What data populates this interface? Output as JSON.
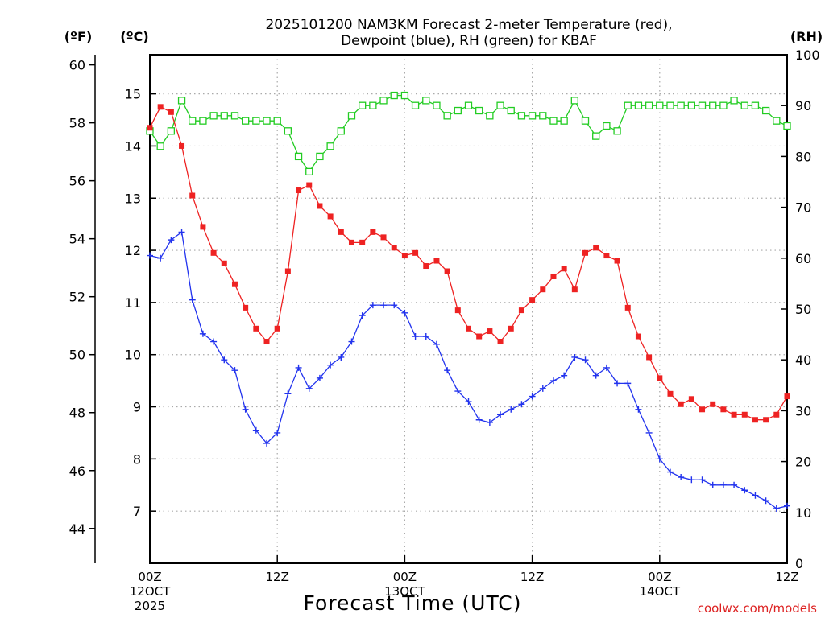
{
  "chart_data": {
    "type": "line",
    "title": "2025101200 NAM3KM Forecast 2-meter Temperature (red),",
    "subtitle": "Dewpoint (blue), RH (green) for KBAF",
    "xlabel": "Forecast Time (UTC)",
    "credit": "coolwx.com/models",
    "colors": {
      "temperature": "#ee2222",
      "dewpoint": "#2233ee",
      "rh": "#22cc22",
      "grid": "#aaaaaa"
    },
    "x_unit": "forecast hour",
    "xlim": [
      0,
      60
    ],
    "x_ticks": [
      {
        "x": 0,
        "label": "00Z",
        "date": "12OCT",
        "year": "2025"
      },
      {
        "x": 12,
        "label": "12Z",
        "date": "",
        "year": ""
      },
      {
        "x": 24,
        "label": "00Z",
        "date": "13OCT",
        "year": ""
      },
      {
        "x": 36,
        "label": "12Z",
        "date": "",
        "year": ""
      },
      {
        "x": 48,
        "label": "00Z",
        "date": "14OCT",
        "year": ""
      },
      {
        "x": 60,
        "label": "12Z",
        "date": "",
        "year": ""
      }
    ],
    "axes": {
      "fahrenheit": {
        "label": "(ºF)",
        "ticks": [
          "60",
          "58",
          "56",
          "54",
          "52",
          "50",
          "48",
          "46",
          "44"
        ]
      },
      "celsius": {
        "label": "(ºC)",
        "ticks": [
          "15",
          "14",
          "13",
          "12",
          "11",
          "10",
          "9",
          "8",
          "7"
        ],
        "ylim": [
          6.0,
          15.75
        ]
      },
      "rh": {
        "label": "(RH)",
        "ticks": [
          "100",
          "90",
          "80",
          "70",
          "60",
          "50",
          "40",
          "30",
          "20",
          "10",
          "0"
        ],
        "ylim": [
          0,
          100
        ]
      }
    },
    "x": [
      0,
      1,
      2,
      3,
      4,
      5,
      6,
      7,
      8,
      9,
      10,
      11,
      12,
      13,
      14,
      15,
      16,
      17,
      18,
      19,
      20,
      21,
      22,
      23,
      24,
      25,
      26,
      27,
      28,
      29,
      30,
      31,
      32,
      33,
      34,
      35,
      36,
      37,
      38,
      39,
      40,
      41,
      42,
      43,
      44,
      45,
      46,
      47,
      48,
      49,
      50,
      51,
      52,
      53,
      54,
      55,
      56,
      57,
      58,
      59,
      60
    ],
    "series": [
      {
        "name": "Temperature",
        "unit": "C",
        "marker": "filled-square",
        "values": [
          14.35,
          14.75,
          14.65,
          14.0,
          13.05,
          12.45,
          11.95,
          11.75,
          11.35,
          10.9,
          10.5,
          10.25,
          10.5,
          11.6,
          13.15,
          13.25,
          12.85,
          12.65,
          12.35,
          12.15,
          12.15,
          12.35,
          12.25,
          12.05,
          11.9,
          11.95,
          11.7,
          11.8,
          11.6,
          10.85,
          10.5,
          10.35,
          10.45,
          10.25,
          10.5,
          10.85,
          11.05,
          11.25,
          11.5,
          11.65,
          11.25,
          11.95,
          12.05,
          11.9,
          11.8,
          10.9,
          10.35,
          9.95,
          9.55,
          9.25,
          9.05,
          9.15,
          8.95,
          9.05,
          8.95,
          8.85,
          8.85,
          8.75,
          8.75,
          8.85,
          9.2
        ]
      },
      {
        "name": "Dewpoint",
        "unit": "C",
        "marker": "plus",
        "values": [
          11.9,
          11.85,
          12.2,
          12.35,
          11.05,
          10.4,
          10.25,
          9.9,
          9.7,
          8.95,
          8.55,
          8.3,
          8.5,
          9.25,
          9.75,
          9.35,
          9.55,
          9.8,
          9.95,
          10.25,
          10.75,
          10.95,
          10.95,
          10.95,
          10.8,
          10.35,
          10.35,
          10.2,
          9.7,
          9.3,
          9.1,
          8.75,
          8.7,
          8.85,
          8.95,
          9.05,
          9.2,
          9.35,
          9.5,
          9.6,
          9.95,
          9.9,
          9.6,
          9.75,
          9.45,
          9.45,
          8.95,
          8.5,
          8.0,
          7.75,
          7.65,
          7.6,
          7.6,
          7.5,
          7.5,
          7.5,
          7.4,
          7.3,
          7.2,
          7.05,
          7.1
        ]
      },
      {
        "name": "RH",
        "unit": "%",
        "marker": "open-square",
        "values": [
          85,
          82,
          85,
          91,
          87,
          87,
          88,
          88,
          88,
          87,
          87,
          87,
          87,
          85,
          80,
          77,
          80,
          82,
          85,
          88,
          90,
          90,
          91,
          92,
          92,
          90,
          91,
          90,
          88,
          89,
          90,
          89,
          88,
          90,
          89,
          88,
          88,
          88,
          87,
          87,
          91,
          87,
          84,
          86,
          85,
          90,
          90,
          90,
          90,
          90,
          90,
          90,
          90,
          90,
          90,
          91,
          90,
          90,
          89,
          87,
          86
        ]
      }
    ]
  }
}
